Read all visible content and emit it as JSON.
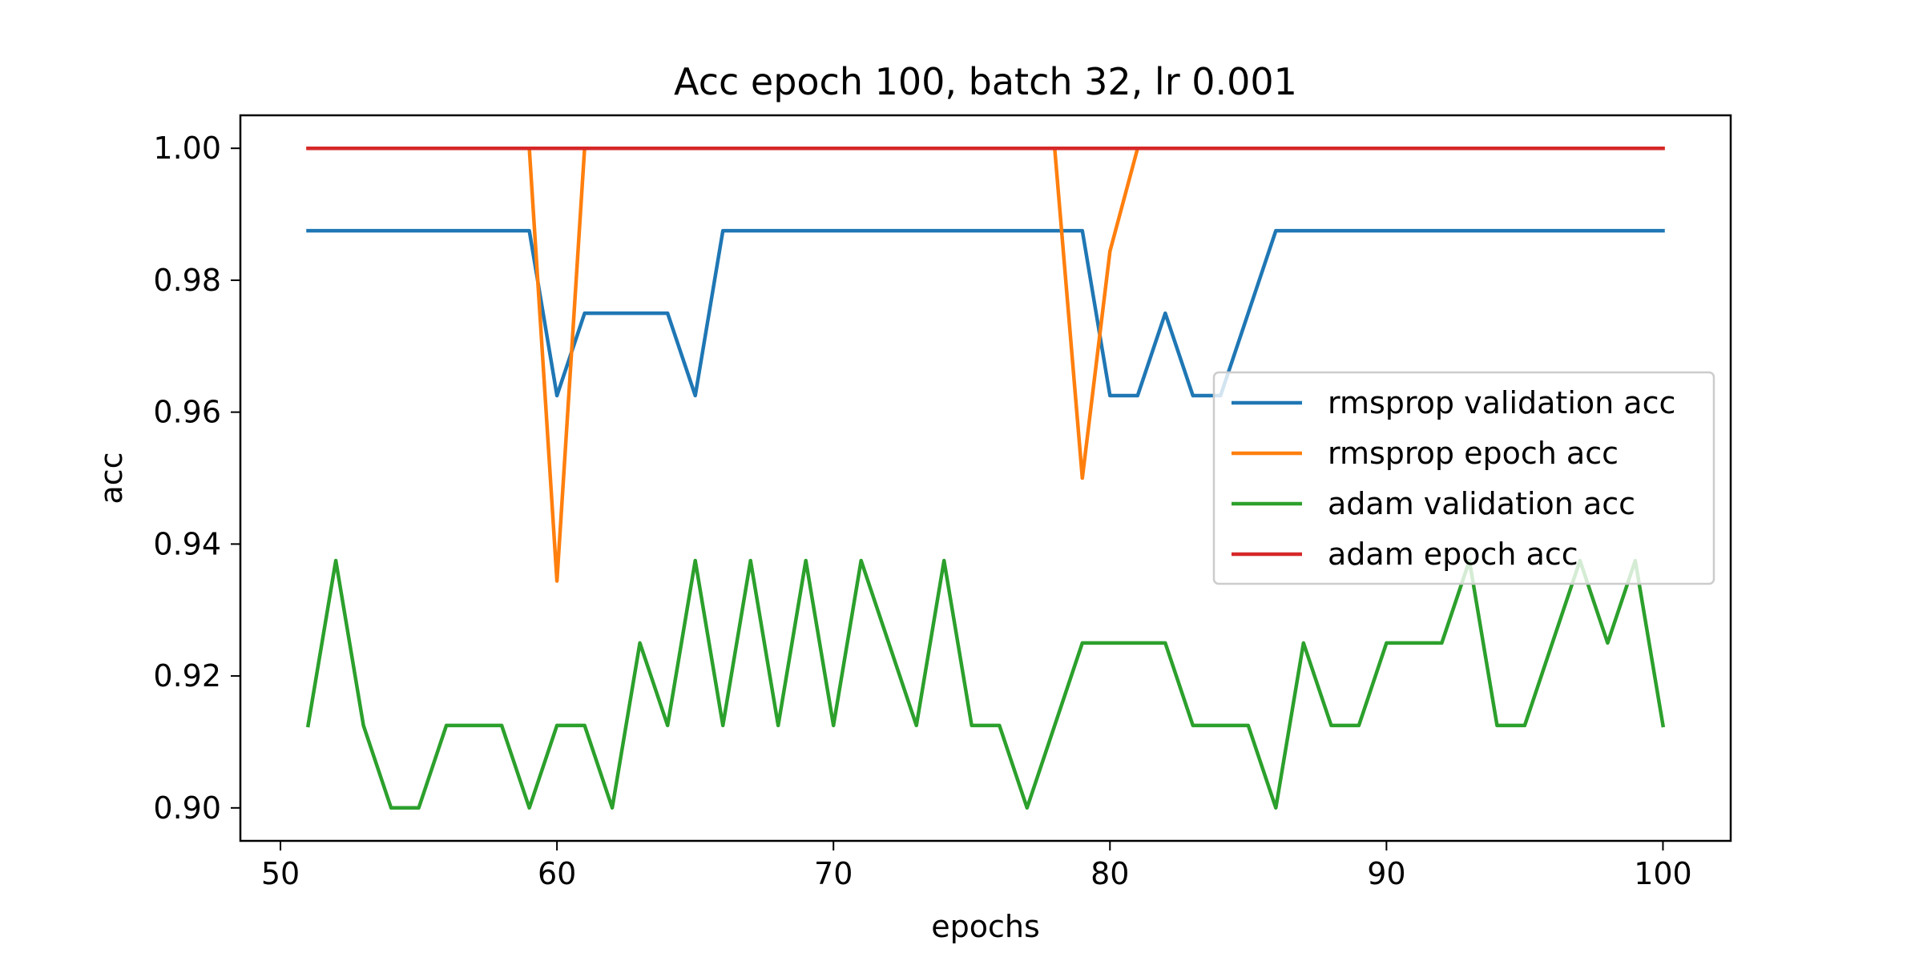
{
  "chart_data": {
    "type": "line",
    "title": "Acc epoch 100, batch 32, lr 0.001",
    "xlabel": "epochs",
    "ylabel": "acc",
    "xlim": [
      48.55,
      102.45
    ],
    "ylim": [
      0.895,
      1.005
    ],
    "xticks": [
      50,
      60,
      70,
      80,
      90,
      100
    ],
    "xtick_labels": [
      "50",
      "60",
      "70",
      "80",
      "90",
      "100"
    ],
    "yticks": [
      0.9,
      0.92,
      0.94,
      0.96,
      0.98,
      1.0
    ],
    "ytick_labels": [
      "0.90",
      "0.92",
      "0.94",
      "0.96",
      "0.98",
      "1.00"
    ],
    "grid": false,
    "legend_position": "center-right",
    "x": [
      51,
      52,
      53,
      54,
      55,
      56,
      57,
      58,
      59,
      60,
      61,
      62,
      63,
      64,
      65,
      66,
      67,
      68,
      69,
      70,
      71,
      72,
      73,
      74,
      75,
      76,
      77,
      78,
      79,
      80,
      81,
      82,
      83,
      84,
      85,
      86,
      87,
      88,
      89,
      90,
      91,
      92,
      93,
      94,
      95,
      96,
      97,
      98,
      99,
      100
    ],
    "series": [
      {
        "name": "rmsprop validation acc",
        "color": "#1f77b4",
        "values": [
          0.9875,
          0.9875,
          0.9875,
          0.9875,
          0.9875,
          0.9875,
          0.9875,
          0.9875,
          0.9875,
          0.9625,
          0.975,
          0.975,
          0.975,
          0.975,
          0.9625,
          0.9875,
          0.9875,
          0.9875,
          0.9875,
          0.9875,
          0.9875,
          0.9875,
          0.9875,
          0.9875,
          0.9875,
          0.9875,
          0.9875,
          0.9875,
          0.9875,
          0.9625,
          0.9625,
          0.975,
          0.9625,
          0.9625,
          0.975,
          0.9875,
          0.9875,
          0.9875,
          0.9875,
          0.9875,
          0.9875,
          0.9875,
          0.9875,
          0.9875,
          0.9875,
          0.9875,
          0.9875,
          0.9875,
          0.9875,
          0.9875
        ]
      },
      {
        "name": "rmsprop epoch acc",
        "color": "#ff7f0e",
        "values": [
          1.0,
          1.0,
          1.0,
          1.0,
          1.0,
          1.0,
          1.0,
          1.0,
          1.0,
          0.9344,
          1.0,
          1.0,
          1.0,
          1.0,
          1.0,
          1.0,
          1.0,
          1.0,
          1.0,
          1.0,
          1.0,
          1.0,
          1.0,
          1.0,
          1.0,
          1.0,
          1.0,
          1.0,
          0.95,
          0.9844,
          1.0,
          1.0,
          1.0,
          1.0,
          1.0,
          1.0,
          1.0,
          1.0,
          1.0,
          1.0,
          1.0,
          1.0,
          1.0,
          1.0,
          1.0,
          1.0,
          1.0,
          1.0,
          1.0,
          1.0
        ]
      },
      {
        "name": "adam validation acc",
        "color": "#2ca02c",
        "values": [
          0.9125,
          0.9375,
          0.9125,
          0.9,
          0.9,
          0.9125,
          0.9125,
          0.9125,
          0.9,
          0.9125,
          0.9125,
          0.9,
          0.925,
          0.9125,
          0.9375,
          0.9125,
          0.9375,
          0.9125,
          0.9375,
          0.9125,
          0.9375,
          0.925,
          0.9125,
          0.9375,
          0.9125,
          0.9125,
          0.9,
          0.9125,
          0.925,
          0.925,
          0.925,
          0.925,
          0.9125,
          0.9125,
          0.9125,
          0.9,
          0.925,
          0.9125,
          0.9125,
          0.925,
          0.925,
          0.925,
          0.9375,
          0.9125,
          0.9125,
          0.925,
          0.9375,
          0.925,
          0.9375,
          0.9125
        ]
      },
      {
        "name": "adam epoch acc",
        "color": "#d62728",
        "values": [
          1.0,
          1.0,
          1.0,
          1.0,
          1.0,
          1.0,
          1.0,
          1.0,
          1.0,
          1.0,
          1.0,
          1.0,
          1.0,
          1.0,
          1.0,
          1.0,
          1.0,
          1.0,
          1.0,
          1.0,
          1.0,
          1.0,
          1.0,
          1.0,
          1.0,
          1.0,
          1.0,
          1.0,
          1.0,
          1.0,
          1.0,
          1.0,
          1.0,
          1.0,
          1.0,
          1.0,
          1.0,
          1.0,
          1.0,
          1.0,
          1.0,
          1.0,
          1.0,
          1.0,
          1.0,
          1.0,
          1.0,
          1.0,
          1.0,
          1.0
        ]
      }
    ]
  }
}
